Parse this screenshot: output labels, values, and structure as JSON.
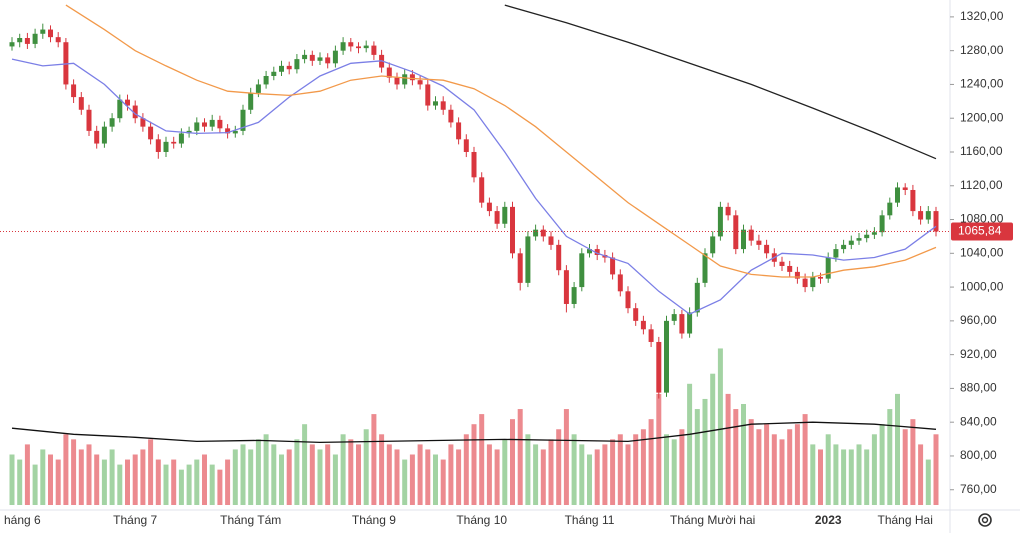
{
  "chart_data": {
    "type": "candlestick",
    "ylim": [
      736,
      1340
    ],
    "yticks": [
      {
        "value": 760,
        "label": "760,00"
      },
      {
        "value": 800,
        "label": "800,00"
      },
      {
        "value": 840,
        "label": "840,00"
      },
      {
        "value": 880,
        "label": "880,00"
      },
      {
        "value": 920,
        "label": "920,00"
      },
      {
        "value": 960,
        "label": "960,00"
      },
      {
        "value": 1000,
        "label": "1000,00"
      },
      {
        "value": 1040,
        "label": "1040,00"
      },
      {
        "value": 1080,
        "label": "1080,00"
      },
      {
        "value": 1120,
        "label": "1120,00"
      },
      {
        "value": 1160,
        "label": "1160,00"
      },
      {
        "value": 1200,
        "label": "1200,00"
      },
      {
        "value": 1240,
        "label": "1240,00"
      },
      {
        "value": 1280,
        "label": "1280,00"
      },
      {
        "value": 1320,
        "label": "1320,00"
      }
    ],
    "x_labels": [
      {
        "value": 1,
        "label": "háng 6"
      },
      {
        "value": 16,
        "label": "Tháng 7"
      },
      {
        "value": 31,
        "label": "Tháng Tám"
      },
      {
        "value": 47,
        "label": "Tháng 9"
      },
      {
        "value": 61,
        "label": "Tháng 10"
      },
      {
        "value": 75,
        "label": "Tháng 11"
      },
      {
        "value": 91,
        "label": "Tháng Mười hai"
      },
      {
        "value": 106,
        "label": "2023"
      },
      {
        "value": 116,
        "label": "Tháng Hai"
      }
    ],
    "last_price": {
      "value": 1065.84,
      "label": "1065,84"
    },
    "up_color": "#3f8f3f",
    "down_color": "#d9363e",
    "volume_up_color": "#a3d3a3",
    "volume_down_color": "#ec8a8f",
    "volume_lim": [
      0,
      500
    ],
    "ohlc": [
      [
        1285,
        1296,
        1280,
        1290
      ],
      [
        1290,
        1300,
        1284,
        1295
      ],
      [
        1295,
        1301,
        1282,
        1288
      ],
      [
        1288,
        1306,
        1283,
        1300
      ],
      [
        1300,
        1312,
        1294,
        1305
      ],
      [
        1305,
        1310,
        1290,
        1296
      ],
      [
        1296,
        1302,
        1284,
        1290
      ],
      [
        1290,
        1295,
        1234,
        1240
      ],
      [
        1240,
        1246,
        1218,
        1225
      ],
      [
        1225,
        1231,
        1204,
        1210
      ],
      [
        1210,
        1216,
        1179,
        1185
      ],
      [
        1185,
        1191,
        1164,
        1170
      ],
      [
        1170,
        1196,
        1165,
        1190
      ],
      [
        1190,
        1206,
        1184,
        1200
      ],
      [
        1200,
        1228,
        1195,
        1222
      ],
      [
        1222,
        1228,
        1209,
        1215
      ],
      [
        1215,
        1221,
        1194,
        1200
      ],
      [
        1200,
        1206,
        1184,
        1190
      ],
      [
        1190,
        1196,
        1169,
        1175
      ],
      [
        1175,
        1181,
        1152,
        1160
      ],
      [
        1160,
        1178,
        1154,
        1172
      ],
      [
        1172,
        1178,
        1164,
        1170
      ],
      [
        1170,
        1188,
        1165,
        1182
      ],
      [
        1182,
        1190,
        1177,
        1185
      ],
      [
        1185,
        1201,
        1180,
        1195
      ],
      [
        1195,
        1200,
        1184,
        1190
      ],
      [
        1190,
        1204,
        1185,
        1198
      ],
      [
        1198,
        1203,
        1182,
        1188
      ],
      [
        1188,
        1193,
        1176,
        1182
      ],
      [
        1182,
        1191,
        1177,
        1185
      ],
      [
        1185,
        1216,
        1180,
        1210
      ],
      [
        1210,
        1236,
        1205,
        1230
      ],
      [
        1230,
        1246,
        1225,
        1240
      ],
      [
        1240,
        1256,
        1235,
        1250
      ],
      [
        1250,
        1261,
        1245,
        1255
      ],
      [
        1255,
        1268,
        1250,
        1262
      ],
      [
        1262,
        1267,
        1252,
        1258
      ],
      [
        1258,
        1276,
        1253,
        1270
      ],
      [
        1270,
        1281,
        1265,
        1275
      ],
      [
        1275,
        1280,
        1262,
        1268
      ],
      [
        1268,
        1278,
        1263,
        1272
      ],
      [
        1272,
        1277,
        1259,
        1265
      ],
      [
        1265,
        1286,
        1260,
        1280
      ],
      [
        1280,
        1296,
        1275,
        1290
      ],
      [
        1290,
        1295,
        1279,
        1285
      ],
      [
        1285,
        1290,
        1277,
        1283
      ],
      [
        1283,
        1292,
        1278,
        1286
      ],
      [
        1286,
        1291,
        1269,
        1275
      ],
      [
        1275,
        1281,
        1254,
        1260
      ],
      [
        1260,
        1266,
        1242,
        1248
      ],
      [
        1248,
        1254,
        1234,
        1240
      ],
      [
        1240,
        1258,
        1235,
        1252
      ],
      [
        1252,
        1257,
        1239,
        1245
      ],
      [
        1245,
        1250,
        1234,
        1240
      ],
      [
        1240,
        1246,
        1209,
        1215
      ],
      [
        1215,
        1226,
        1210,
        1220
      ],
      [
        1220,
        1226,
        1204,
        1210
      ],
      [
        1210,
        1216,
        1189,
        1195
      ],
      [
        1195,
        1201,
        1169,
        1175
      ],
      [
        1175,
        1181,
        1154,
        1160
      ],
      [
        1160,
        1166,
        1124,
        1130
      ],
      [
        1130,
        1136,
        1094,
        1100
      ],
      [
        1100,
        1106,
        1084,
        1090
      ],
      [
        1090,
        1096,
        1069,
        1075
      ],
      [
        1075,
        1101,
        1070,
        1095
      ],
      [
        1095,
        1101,
        1034,
        1040
      ],
      [
        1040,
        1046,
        996,
        1005
      ],
      [
        1005,
        1066,
        1000,
        1060
      ],
      [
        1060,
        1074,
        1055,
        1068
      ],
      [
        1068,
        1073,
        1054,
        1060
      ],
      [
        1060,
        1066,
        1044,
        1050
      ],
      [
        1050,
        1056,
        1014,
        1020
      ],
      [
        1020,
        1026,
        970,
        980
      ],
      [
        980,
        1006,
        975,
        1000
      ],
      [
        1000,
        1046,
        995,
        1040
      ],
      [
        1040,
        1051,
        1035,
        1045
      ],
      [
        1045,
        1050,
        1032,
        1038
      ],
      [
        1038,
        1044,
        1029,
        1035
      ],
      [
        1035,
        1041,
        1009,
        1015
      ],
      [
        1015,
        1021,
        989,
        995
      ],
      [
        995,
        1001,
        969,
        975
      ],
      [
        975,
        981,
        954,
        960
      ],
      [
        960,
        966,
        944,
        950
      ],
      [
        950,
        956,
        929,
        935
      ],
      [
        935,
        941,
        868,
        875
      ],
      [
        875,
        966,
        870,
        960
      ],
      [
        960,
        974,
        955,
        968
      ],
      [
        968,
        973,
        939,
        945
      ],
      [
        945,
        976,
        940,
        970
      ],
      [
        970,
        1011,
        965,
        1005
      ],
      [
        1005,
        1046,
        1000,
        1040
      ],
      [
        1040,
        1066,
        1035,
        1060
      ],
      [
        1060,
        1101,
        1055,
        1095
      ],
      [
        1095,
        1100,
        1079,
        1085
      ],
      [
        1085,
        1091,
        1039,
        1045
      ],
      [
        1045,
        1074,
        1040,
        1068
      ],
      [
        1068,
        1073,
        1049,
        1055
      ],
      [
        1055,
        1062,
        1044,
        1050
      ],
      [
        1050,
        1056,
        1034,
        1040
      ],
      [
        1040,
        1046,
        1024,
        1030
      ],
      [
        1030,
        1036,
        1019,
        1025
      ],
      [
        1025,
        1031,
        1012,
        1018
      ],
      [
        1018,
        1024,
        1004,
        1010
      ],
      [
        1010,
        1016,
        994,
        1000
      ],
      [
        1000,
        1018,
        995,
        1012
      ],
      [
        1012,
        1017,
        1004,
        1010
      ],
      [
        1010,
        1041,
        1005,
        1035
      ],
      [
        1035,
        1051,
        1030,
        1045
      ],
      [
        1045,
        1056,
        1040,
        1050
      ],
      [
        1050,
        1061,
        1045,
        1055
      ],
      [
        1055,
        1064,
        1050,
        1058
      ],
      [
        1058,
        1068,
        1053,
        1062
      ],
      [
        1062,
        1071,
        1057,
        1065
      ],
      [
        1065,
        1091,
        1060,
        1085
      ],
      [
        1085,
        1106,
        1080,
        1100
      ],
      [
        1100,
        1124,
        1095,
        1118
      ],
      [
        1118,
        1123,
        1109,
        1115
      ],
      [
        1115,
        1121,
        1084,
        1090
      ],
      [
        1090,
        1096,
        1074,
        1080
      ],
      [
        1080,
        1096,
        1075,
        1090
      ],
      [
        1090,
        1095,
        1060,
        1065.84
      ]
    ],
    "volume": [
      50,
      45,
      60,
      40,
      55,
      50,
      45,
      70,
      65,
      55,
      60,
      50,
      45,
      55,
      40,
      45,
      50,
      55,
      65,
      45,
      40,
      45,
      35,
      40,
      45,
      50,
      40,
      35,
      45,
      55,
      60,
      55,
      65,
      70,
      60,
      50,
      55,
      65,
      80,
      60,
      55,
      60,
      50,
      70,
      65,
      60,
      75,
      90,
      70,
      60,
      55,
      45,
      50,
      60,
      55,
      50,
      45,
      60,
      55,
      70,
      80,
      90,
      60,
      55,
      65,
      85,
      95,
      70,
      60,
      55,
      65,
      75,
      95,
      70,
      60,
      50,
      55,
      60,
      65,
      70,
      60,
      70,
      75,
      85,
      110,
      70,
      65,
      75,
      120,
      95,
      105,
      130,
      155,
      110,
      95,
      100,
      85,
      75,
      80,
      70,
      65,
      75,
      80,
      90,
      60,
      55,
      70,
      60,
      55,
      55,
      60,
      55,
      70,
      80,
      95,
      110,
      75,
      85,
      60,
      45,
      70
    ],
    "lines": [
      {
        "color": "#7b7fe6",
        "x": [
          0,
          4,
          8,
          12,
          16,
          20,
          24,
          28,
          32,
          36,
          40,
          44,
          48,
          52,
          56,
          60,
          64,
          68,
          72,
          76,
          80,
          84,
          88,
          92,
          96,
          100,
          104,
          108,
          112,
          116,
          120
        ],
        "values": [
          1270,
          1262,
          1265,
          1240,
          1205,
          1185,
          1182,
          1183,
          1195,
          1225,
          1250,
          1265,
          1268,
          1255,
          1238,
          1210,
          1160,
          1105,
          1060,
          1040,
          1028,
          995,
          968,
          985,
          1020,
          1040,
          1038,
          1032,
          1035,
          1045,
          1072
        ]
      },
      {
        "color": "#f2994a",
        "x": [
          7,
          12,
          16,
          20,
          24,
          28,
          32,
          36,
          40,
          44,
          48,
          52,
          56,
          60,
          64,
          68,
          72,
          76,
          80,
          84,
          88,
          92,
          96,
          100,
          104,
          108,
          112,
          116,
          120
        ],
        "values": [
          1334,
          1305,
          1280,
          1262,
          1245,
          1232,
          1229,
          1227,
          1232,
          1245,
          1250,
          1247,
          1245,
          1235,
          1215,
          1190,
          1160,
          1130,
          1100,
          1075,
          1050,
          1025,
          1015,
          1012,
          1012,
          1020,
          1024,
          1032,
          1047
        ]
      },
      {
        "color": "#222222",
        "x": [
          64,
          72,
          80,
          88,
          96,
          104,
          112,
          120
        ],
        "values": [
          1334,
          1313,
          1290,
          1265,
          1240,
          1212,
          1183,
          1152
        ]
      },
      {
        "color": "#111111",
        "axis": "volume",
        "x": [
          0,
          8,
          16,
          24,
          32,
          40,
          48,
          56,
          64,
          72,
          80,
          88,
          96,
          104,
          112,
          120
        ],
        "values": [
          76,
          70,
          67,
          63,
          64,
          62,
          63,
          64,
          65,
          64,
          63,
          70,
          80,
          82,
          80,
          75
        ]
      }
    ]
  }
}
